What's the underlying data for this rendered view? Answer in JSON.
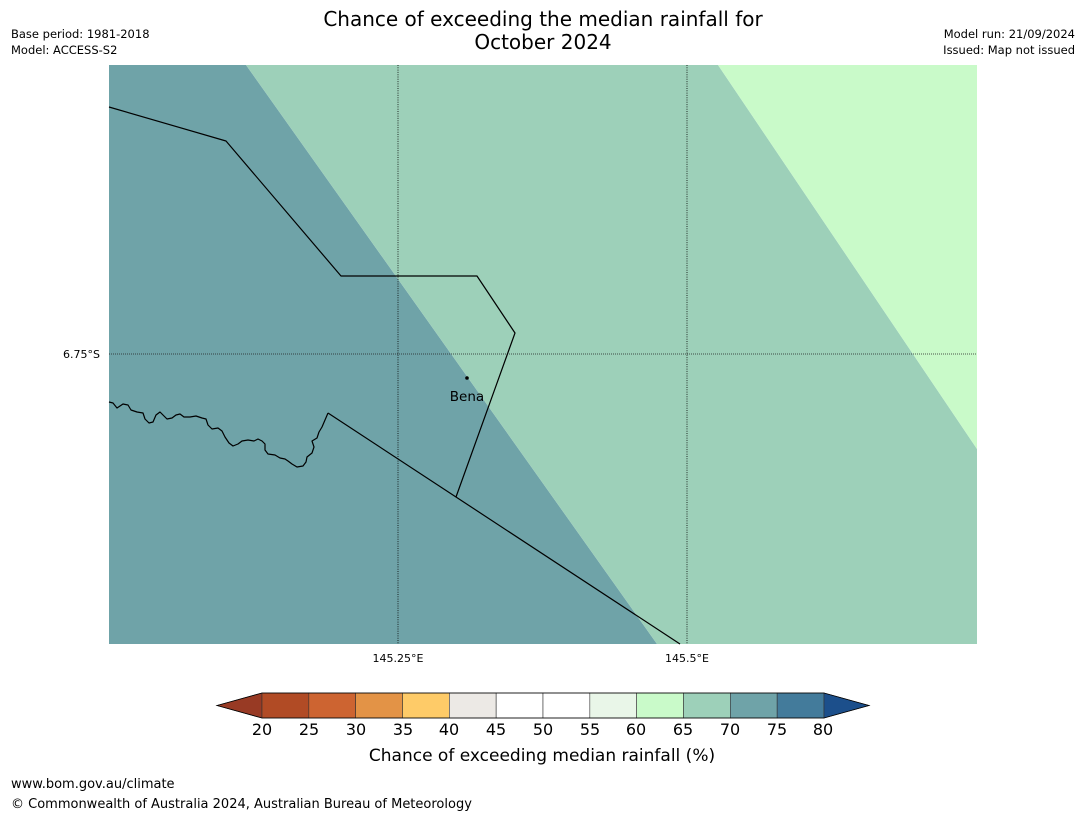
{
  "header": {
    "title_line1": "Chance of exceeding the median rainfall for",
    "title_line2": "October 2024",
    "base_period": "Base period: 1981-2018",
    "model": "Model: ACCESS-S2",
    "model_run": "Model run: 21/09/2024",
    "issued": "Issued: Map not issued"
  },
  "map": {
    "grid": {
      "latitudes": [
        "6.75°S"
      ],
      "longitudes": [
        "145.25°E",
        "145.5°E"
      ]
    },
    "places": [
      {
        "name": "Bena"
      }
    ],
    "regions": [
      {
        "range": [
          70,
          75
        ],
        "color": "#6fa3a8"
      },
      {
        "range": [
          65,
          70
        ],
        "color": "#9dd0b9"
      },
      {
        "range": [
          60,
          65
        ],
        "color": "#c9fac9"
      }
    ]
  },
  "colorbar": {
    "label": "Chance of exceeding median rainfall (%)",
    "ticks": [
      20,
      25,
      30,
      35,
      40,
      45,
      50,
      55,
      60,
      65,
      70,
      75,
      80
    ],
    "colors": [
      "#b14b25",
      "#cd6431",
      "#e39346",
      "#fecb68",
      "#ece9e5",
      "#ffffff",
      "#ffffff",
      "#e9f6e8",
      "#c9fac9",
      "#9dd0b9",
      "#6fa3a8",
      "#437b9b"
    ],
    "extend_low_color": "#983a24",
    "extend_high_color": "#1c4f8b"
  },
  "footer": {
    "url": "www.bom.gov.au/climate",
    "copyright": "© Commonwealth of Australia 2024, Australian Bureau of Meteorology"
  }
}
